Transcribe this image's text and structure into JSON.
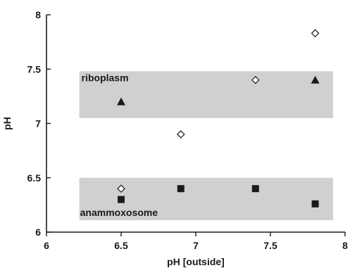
{
  "chart_data": {
    "type": "scatter",
    "xlabel": "pH [outside]",
    "ylabel": "pH",
    "xlim": [
      6,
      8
    ],
    "ylim": [
      6,
      8
    ],
    "xticks": [
      "6",
      "6.5",
      "7",
      "7.5",
      "8"
    ],
    "yticks": [
      "6",
      "6.5",
      "7",
      "7.5",
      "8"
    ],
    "grid": false,
    "regions": [
      {
        "label": "riboplasm",
        "x": [
          6.22,
          7.92
        ],
        "y": [
          7.05,
          7.48
        ],
        "color": "#d0d0d0"
      },
      {
        "label": "anammoxosome",
        "x": [
          6.22,
          7.92
        ],
        "y": [
          6.11,
          6.5
        ],
        "color": "#d0d0d0"
      }
    ],
    "series": [
      {
        "marker": "triangle",
        "color": "#1a1a1a",
        "points": [
          {
            "x": 6.5,
            "y": 7.2
          },
          {
            "x": 7.8,
            "y": 7.4
          }
        ]
      },
      {
        "marker": "diamond-open",
        "color": "#1a1a1a",
        "points": [
          {
            "x": 6.5,
            "y": 6.4
          },
          {
            "x": 6.9,
            "y": 6.9
          },
          {
            "x": 7.4,
            "y": 7.4
          },
          {
            "x": 7.8,
            "y": 7.83
          }
        ]
      },
      {
        "marker": "square",
        "color": "#1a1a1a",
        "points": [
          {
            "x": 6.5,
            "y": 6.3
          },
          {
            "x": 6.9,
            "y": 6.4
          },
          {
            "x": 7.4,
            "y": 6.4
          },
          {
            "x": 7.8,
            "y": 6.26
          }
        ]
      }
    ]
  }
}
